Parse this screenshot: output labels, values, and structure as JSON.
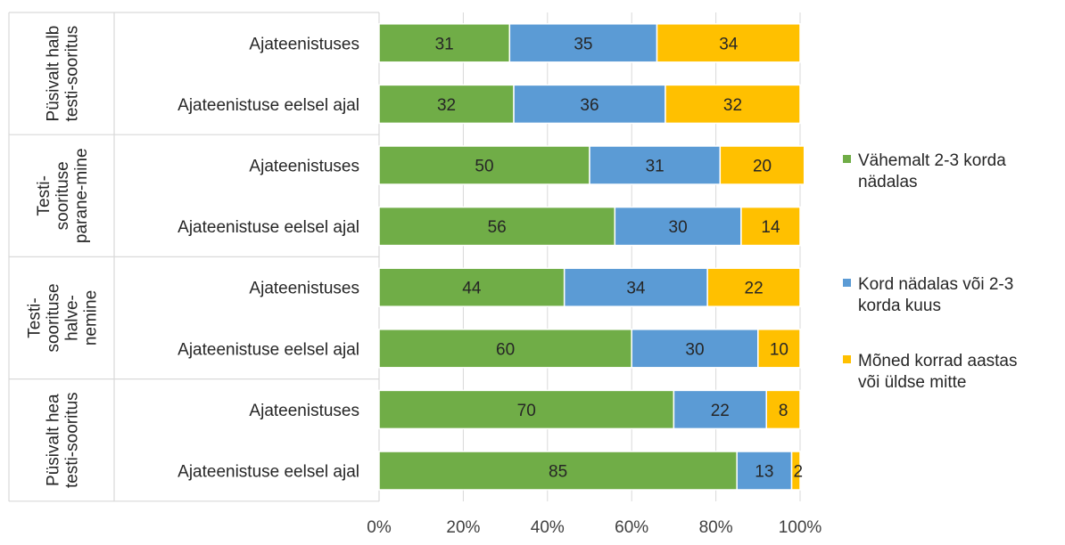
{
  "chart_data": {
    "type": "bar",
    "orientation": "horizontal",
    "stacked": true,
    "title": "",
    "xlabel": "",
    "ylabel": "",
    "xlim": [
      0,
      100
    ],
    "x_ticks": [
      "0%",
      "20%",
      "40%",
      "60%",
      "80%",
      "100%"
    ],
    "grid": true,
    "legend_position": "right",
    "groups": [
      {
        "label": "Püsivalt halb testi-sooritus",
        "label_lines": [
          "Püsivalt halb",
          "testi-sooritus"
        ],
        "label_rotated": true
      },
      {
        "label": "Testi-soorituse parane-minetesti",
        "label_lines": [
          "Testi-",
          "soorituse",
          "parane-mine"
        ],
        "label_rotated": true
      },
      {
        "label": "Testi-soorituse halve-nemine",
        "label_lines": [
          "Testi-",
          "soorituse",
          "halve-",
          "nemine"
        ],
        "label_rotated": true
      },
      {
        "label": "Püsivalt hea testi-sooritus",
        "label_lines": [
          "Püsivalt hea",
          "testi-sooritus"
        ],
        "label_rotated": true
      }
    ],
    "categories": [
      "Ajateenistuses",
      "Ajateenistuse eelsel ajal",
      "Ajateenistuses",
      "Ajateenistuse eelsel ajal",
      "Ajateenistuses",
      "Ajateenistuse eelsel ajal",
      "Ajateenistuses",
      "Ajateenistuse eelsel ajal"
    ],
    "series": [
      {
        "name": "Vähemalt 2-3 korda nädalas",
        "name_lines": [
          "Vähemalt 2-3 korda",
          "nädalas"
        ],
        "color": "#70AD47",
        "values": [
          31,
          32,
          50,
          56,
          44,
          60,
          70,
          85
        ]
      },
      {
        "name": "Kord nädalas või 2-3 korda kuus",
        "name_lines": [
          "Kord nädalas või 2-3",
          "korda kuus"
        ],
        "color": "#5B9BD5",
        "values": [
          35,
          36,
          31,
          30,
          34,
          30,
          22,
          13
        ]
      },
      {
        "name": "Mõned korrad aastas või üldse mitte",
        "name_lines": [
          "Mõned korrad aastas",
          "või üldse mitte"
        ],
        "color": "#FFC000",
        "values": [
          34,
          32,
          20,
          14,
          22,
          10,
          8,
          2
        ]
      }
    ]
  }
}
